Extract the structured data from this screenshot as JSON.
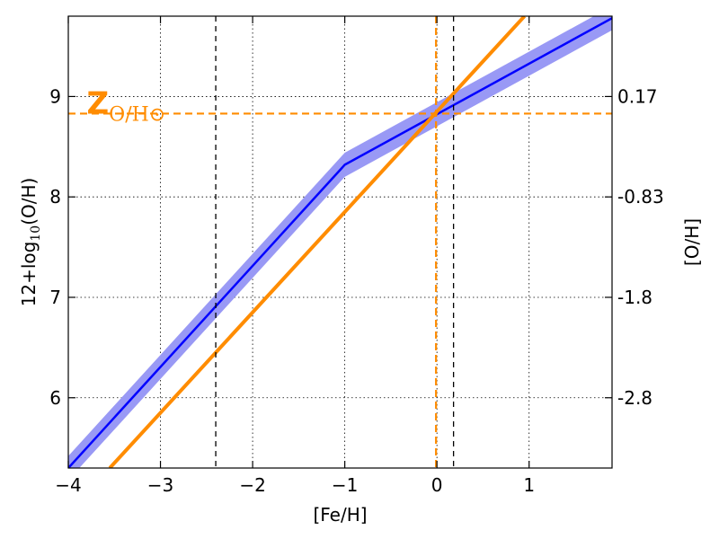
{
  "chart_data": {
    "type": "line",
    "xlabel": "[Fe/H]",
    "ylabel": "12+log",
    "ylabel_sub": "10",
    "ylabel_tail": "(O/H)",
    "y2label": "[O/H]",
    "xlim": [
      -4.0,
      1.9
    ],
    "ylim": [
      5.3,
      9.8
    ],
    "x_ticks": [
      -4,
      -3,
      -2,
      -1,
      0,
      1
    ],
    "x_tick_labels": [
      "−4",
      "−3",
      "−2",
      "−1",
      "0",
      "1"
    ],
    "y_ticks": [
      6,
      7,
      8,
      9
    ],
    "y_tick_labels": [
      "6",
      "7",
      "8",
      "9"
    ],
    "y2_ticks": [
      6.0,
      7.0,
      8.0,
      9.0
    ],
    "y2_tick_labels": [
      "-2.8",
      "-1.8",
      "-0.83",
      "0.17"
    ],
    "grid": true,
    "series": [
      {
        "points": [
          [
            -4.0,
            5.3
          ],
          [
            -1.0,
            8.32
          ],
          [
            1.9,
            9.78
          ]
        ],
        "band_halfwidth": 0.12,
        "color": "#0000ff",
        "band_color": "#9999f5"
      },
      {
        "points": [
          [
            -3.55,
            5.3
          ],
          [
            0.95,
            9.8
          ]
        ],
        "color": "#ff8c00"
      }
    ],
    "reference_lines": {
      "vertical_dashed_black": [
        -2.4,
        0.18
      ],
      "vertical_dashed_orange": [
        -0.01
      ],
      "horizontal_dashed_orange": [
        8.83
      ]
    },
    "annotation": {
      "main": "Z",
      "sub": "O/H⊙",
      "x": -3.8,
      "y": 8.9,
      "color": "#ff8c00"
    }
  }
}
